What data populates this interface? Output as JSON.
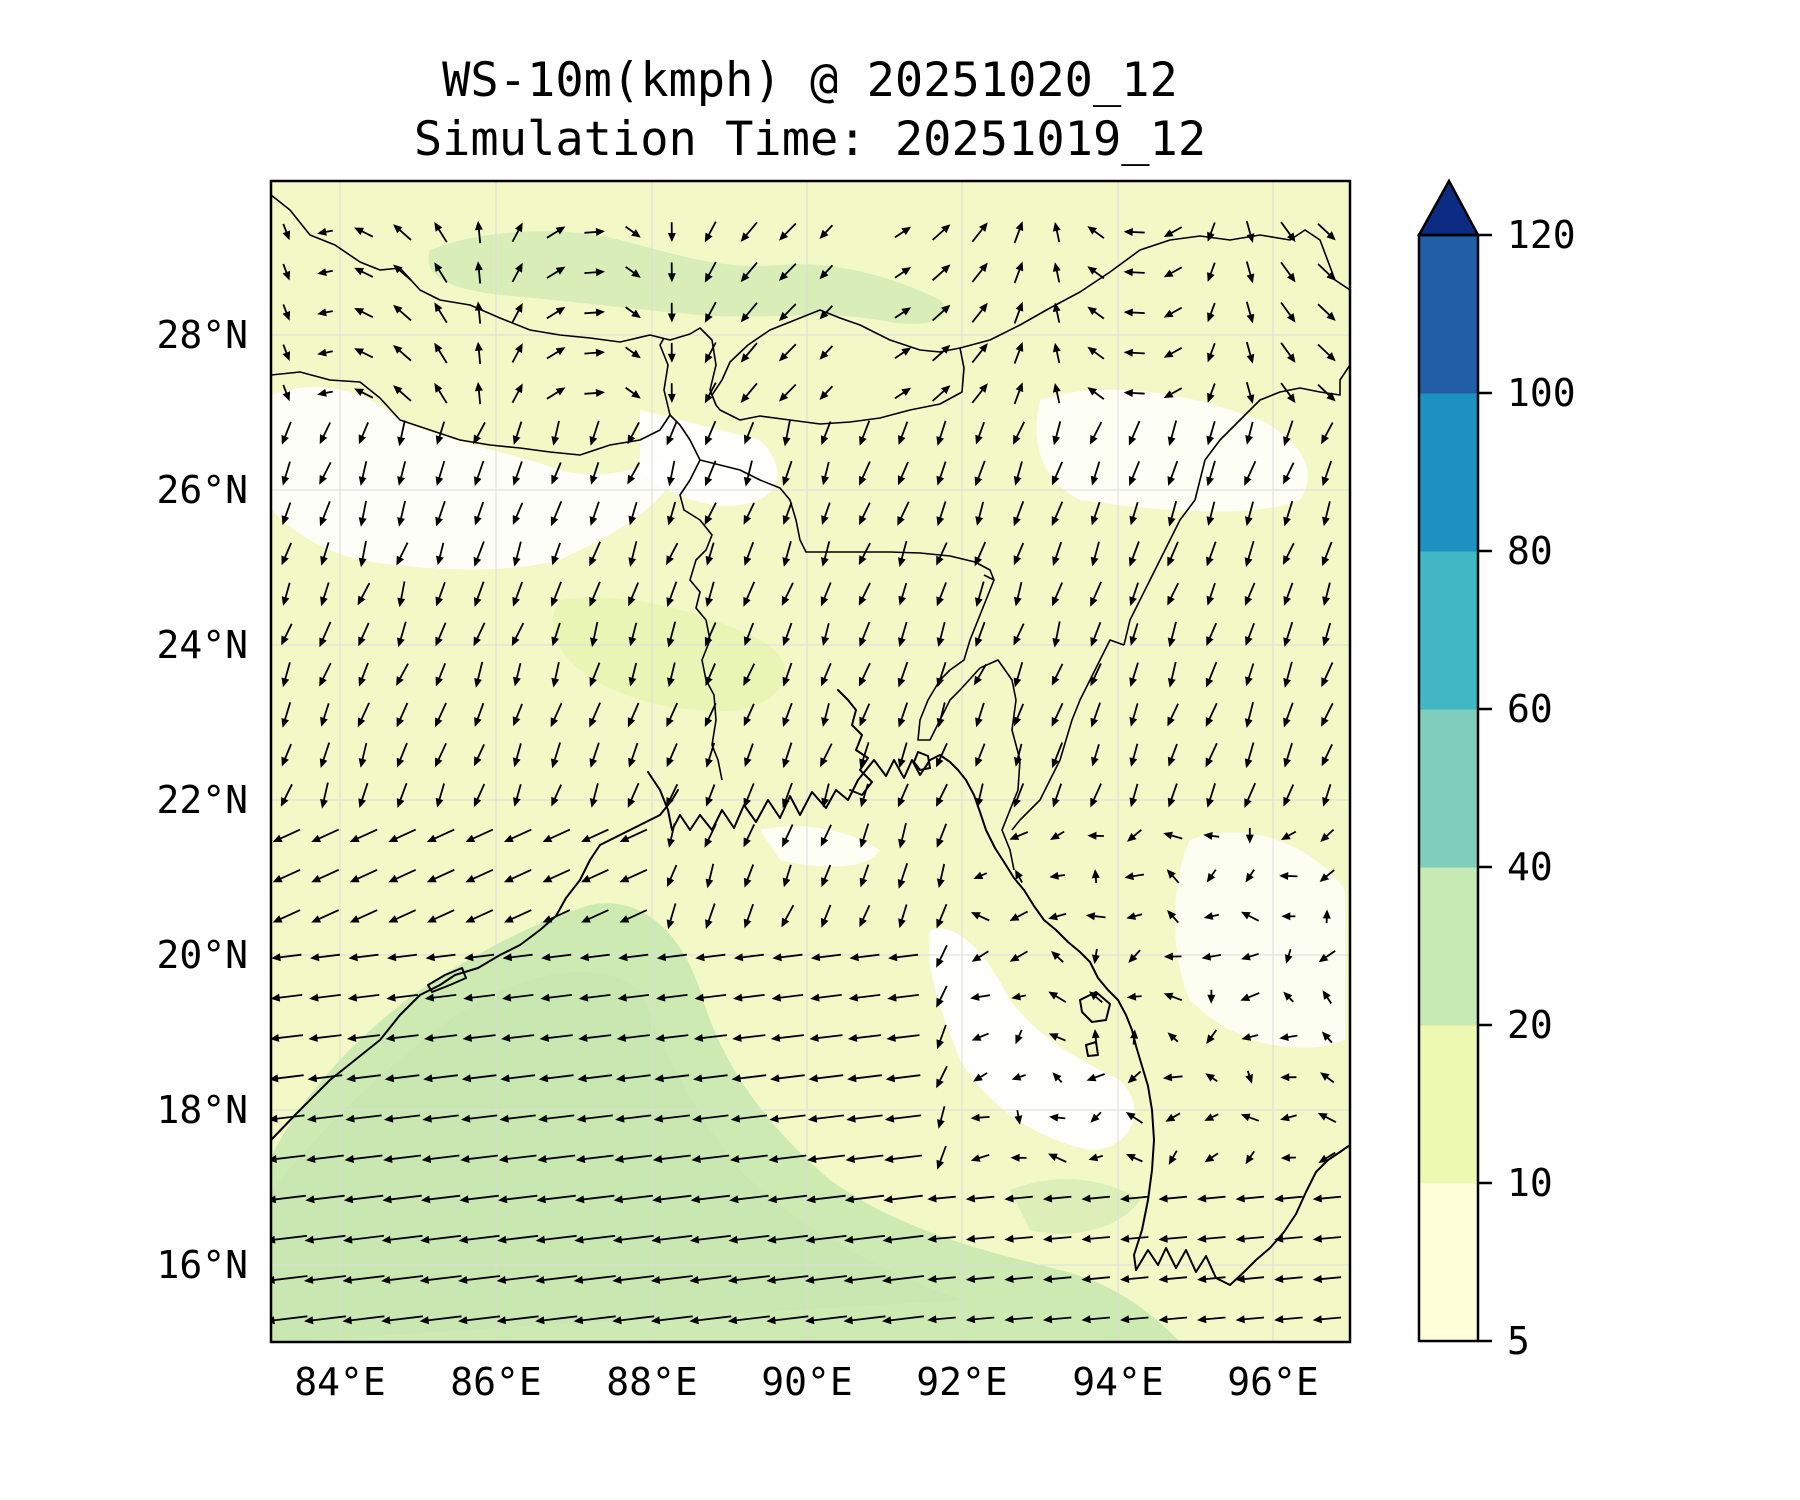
{
  "figure": {
    "title_line1": "WS-10m(kmph) @ 20251020_12",
    "title_line2": "Simulation Time: 20251019_12"
  },
  "map": {
    "lon_range": [
      83.0,
      97.0
    ],
    "lat_range": [
      15.0,
      30.0
    ],
    "lon_ticks": [
      84,
      86,
      88,
      90,
      92,
      94,
      96
    ],
    "lon_tick_labels": [
      "84°E",
      "86°E",
      "88°E",
      "90°E",
      "92°E",
      "94°E",
      "96°E"
    ],
    "lat_ticks": [
      16,
      18,
      20,
      22,
      24,
      26,
      28
    ],
    "lat_tick_labels": [
      "16°N",
      "18°N",
      "20°N",
      "22°N",
      "24°N",
      "26°N",
      "28°N"
    ],
    "gridlines": true,
    "region": "Bay of Bengal, Bangladesh, Myanmar, Nepal, Bhutan"
  },
  "colorbar": {
    "levels": [
      5,
      10,
      20,
      40,
      60,
      80,
      100,
      120
    ],
    "tick_labels": [
      "5",
      "10",
      "20",
      "40",
      "60",
      "80",
      "100",
      "120"
    ],
    "colors": [
      "#ffffd9",
      "#edf8b1",
      "#c7e9b4",
      "#7fcdbb",
      "#41b6c4",
      "#1d91c0",
      "#225ea8"
    ],
    "extend_color": "#0c2c84",
    "extend": "max"
  },
  "chart_data": {
    "type": "heatmap",
    "variable": "WS-10m",
    "units": "kmph",
    "valid_time": "20251020_12",
    "simulation_time": "20251019_12",
    "speed_regions": [
      {
        "region": "western and central Bay of Bengal (south of 20°N, west of 91°E)",
        "range_kmph": [
          20,
          40
        ]
      },
      {
        "region": "southern Bay of Bengal near 92°E–94°E, 15°N",
        "range_kmph": [
          20,
          40
        ]
      },
      {
        "region": "Himalayan foothills / Nepal 27.5°N–29°N",
        "range_kmph": [
          10,
          40
        ]
      },
      {
        "region": "Bangladesh, Indian plains, Myanmar interior",
        "range_kmph": [
          5,
          20
        ]
      },
      {
        "region": "northeastern Bay near Myanmar coast (18°N–21°N, 92°E–94°E)",
        "range_kmph": [
          0,
          10
        ]
      }
    ],
    "wind_field": [
      {
        "region": "Bay of Bengal south of 20°N",
        "direction": "easterly (flowing westward)",
        "relative_strength": "strongest"
      },
      {
        "region": "northwest Bay / Odisha coast",
        "direction": "east-northeasterly toward the coast",
        "relative_strength": "strong"
      },
      {
        "region": "Bangladesh and West Bengal",
        "direction": "northerly (flowing southward)",
        "relative_strength": "moderate"
      },
      {
        "region": "Nepal / Himalayas",
        "direction": "variable, mostly southwesterly and northwesterly",
        "relative_strength": "moderate"
      },
      {
        "region": "Myanmar",
        "direction": "weak and variable",
        "relative_strength": "weak"
      }
    ]
  }
}
